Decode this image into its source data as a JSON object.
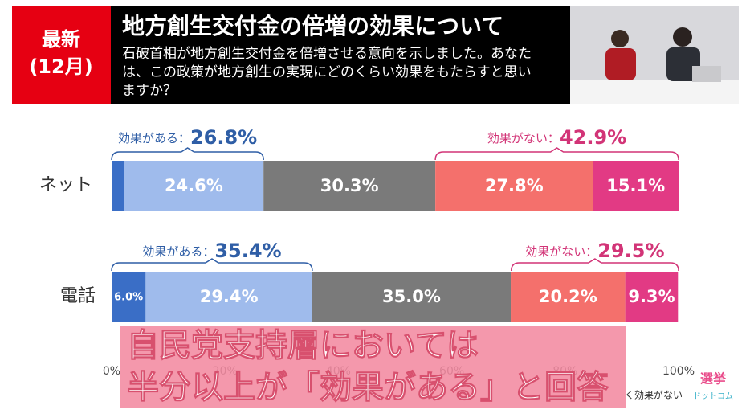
{
  "header": {
    "badge": [
      "最新",
      "(12月)"
    ],
    "title": "地方創生交付金の倍増の効果について",
    "question": [
      "石破首相が地方創生交付金を倍増させる意向を示しました。あなた",
      "は、この政策が地方創生の実現にどのくらい効果をもたらすと思い",
      "ますか？"
    ]
  },
  "chart_data": {
    "type": "bar",
    "orientation": "horizontal",
    "stacked": true,
    "categories": [
      "ネット",
      "電話"
    ],
    "series": [
      {
        "color": "#3a6ec6",
        "values": [
          2.2,
          6.0
        ],
        "value_labels": [
          null,
          "6.0%"
        ]
      },
      {
        "color": "#9fbbec",
        "values": [
          24.6,
          29.4
        ],
        "value_labels": [
          "24.6%",
          "29.4%"
        ]
      },
      {
        "color": "#7a7a7a",
        "values": [
          30.3,
          35.0
        ],
        "value_labels": [
          "30.3%",
          "35.0%"
        ]
      },
      {
        "color": "#f4706c",
        "values": [
          27.8,
          20.2
        ],
        "value_labels": [
          "27.8%",
          "20.2%"
        ]
      },
      {
        "color": "#e23a84",
        "values": [
          15.1,
          9.3
        ],
        "value_labels": [
          "15.1%",
          "9.3%"
        ]
      }
    ],
    "brackets": [
      [
        {
          "label": "効果がある：",
          "value": 26.8,
          "value_label": "26.8%",
          "color": "#2f5ea6"
        },
        {
          "label": "効果がない：",
          "value": 42.9,
          "value_label": "42.9%",
          "color": "#d23477"
        }
      ],
      [
        {
          "label": "効果がある：",
          "value": 35.4,
          "value_label": "35.4%",
          "color": "#2f5ea6"
        },
        {
          "label": "効果がない：",
          "value": 29.5,
          "value_label": "29.5%",
          "color": "#d23477"
        }
      ]
    ],
    "xlim": [
      0,
      100
    ],
    "xticks": [
      {
        "value": 0,
        "label": "0%"
      },
      {
        "value": 20,
        "label": "20%"
      },
      {
        "value": 40,
        "label": "40%"
      },
      {
        "value": 60,
        "label": "60%"
      },
      {
        "value": 80,
        "label": "80%"
      },
      {
        "value": 100,
        "label": "100%"
      }
    ],
    "legend_fragment": "く効果がない"
  },
  "caption": [
    "自民党支持層においては",
    "半分以上が「効果がある」と回答"
  ],
  "logo": [
    "選挙",
    "ドットコム"
  ]
}
